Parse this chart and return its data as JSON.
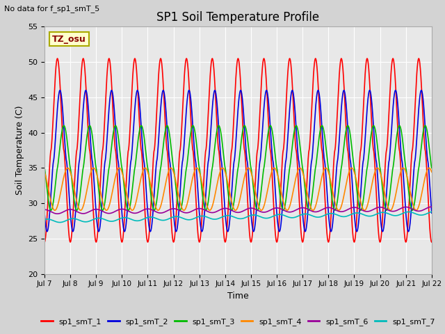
{
  "title": "SP1 Soil Temperature Profile",
  "xlabel": "Time",
  "ylabel": "Soil Temperature (C)",
  "annotation": "No data for f_sp1_smT_5",
  "tz_label": "TZ_osu",
  "ylim": [
    20,
    55
  ],
  "x_tick_labels": [
    "Jul 7",
    "Jul 8",
    "Jul 9",
    "Jul 10",
    "Jul 11",
    "Jul 12",
    "Jul 13",
    "Jul 14",
    "Jul 15",
    "Jul 16",
    "Jul 17",
    "Jul 18",
    "Jul 19",
    "Jul 20",
    "Jul 21",
    "Jul 22"
  ],
  "series": {
    "sp1_smT_1": {
      "color": "#ff0000",
      "lw": 1.2
    },
    "sp1_smT_2": {
      "color": "#0000dd",
      "lw": 1.2
    },
    "sp1_smT_3": {
      "color": "#00bb00",
      "lw": 1.2
    },
    "sp1_smT_4": {
      "color": "#ff8800",
      "lw": 1.2
    },
    "sp1_smT_6": {
      "color": "#990099",
      "lw": 1.2
    },
    "sp1_smT_7": {
      "color": "#00bbbb",
      "lw": 1.2
    }
  },
  "background_color": "#d3d3d3",
  "plot_bg_color": "#e8e8e8"
}
